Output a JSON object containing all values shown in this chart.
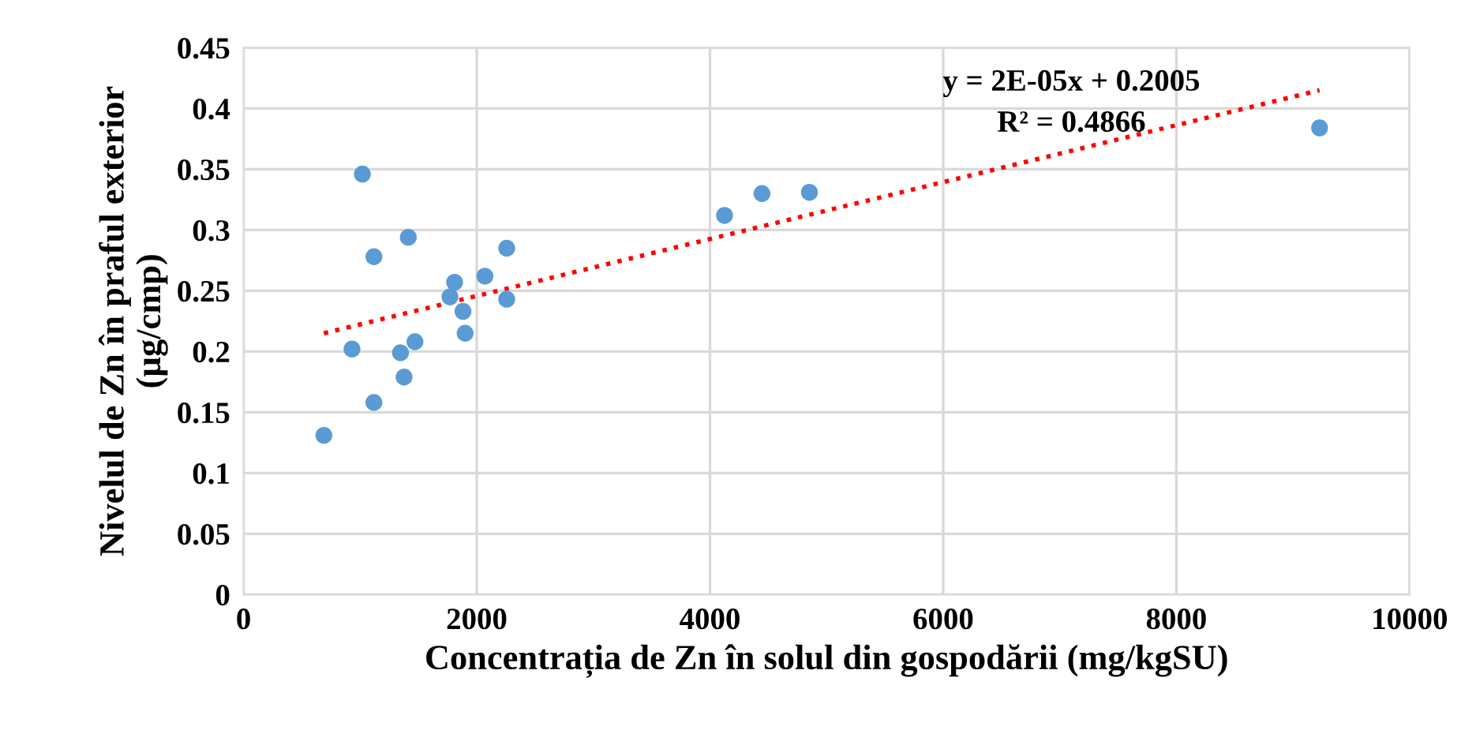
{
  "chart_data": {
    "type": "scatter",
    "xlabel": "Concentrația de Zn în solul din gospodării (mg/kgSU)",
    "ylabel": "Nivelul de Zn în praful exterior\n(µg/cmp)",
    "xlim": [
      0,
      10000
    ],
    "ylim": [
      0,
      0.45
    ],
    "xticks": [
      0,
      2000,
      4000,
      6000,
      8000,
      10000
    ],
    "yticks": [
      0,
      0.05,
      0.1,
      0.15,
      0.2,
      0.25,
      0.3,
      0.35,
      0.4,
      0.45
    ],
    "grid": true,
    "marker": "circle",
    "annotations": [
      "y = 2E-05x + 0.2005",
      "R² = 0.4866"
    ],
    "series": [
      {
        "color": "#5b9bd5",
        "x": [
          1019,
          1413,
          1118,
          2257,
          2070,
          1810,
          1770,
          2257,
          1882,
          1900,
          1470,
          930,
          1346,
          1377,
          1118,
          689,
          4125,
          4446,
          4853,
          9228
        ],
        "values": [
          0.346,
          0.294,
          0.278,
          0.285,
          0.262,
          0.257,
          0.245,
          0.243,
          0.233,
          0.215,
          0.208,
          0.202,
          0.199,
          0.179,
          0.158,
          0.131,
          0.312,
          0.33,
          0.331,
          0.384
        ]
      },
      {
        "type": "line",
        "line_style": "dotted",
        "marker": "none",
        "color": "#ff0000",
        "x": [
          689,
          9228
        ],
        "values": [
          0.215,
          0.415
        ]
      }
    ]
  }
}
